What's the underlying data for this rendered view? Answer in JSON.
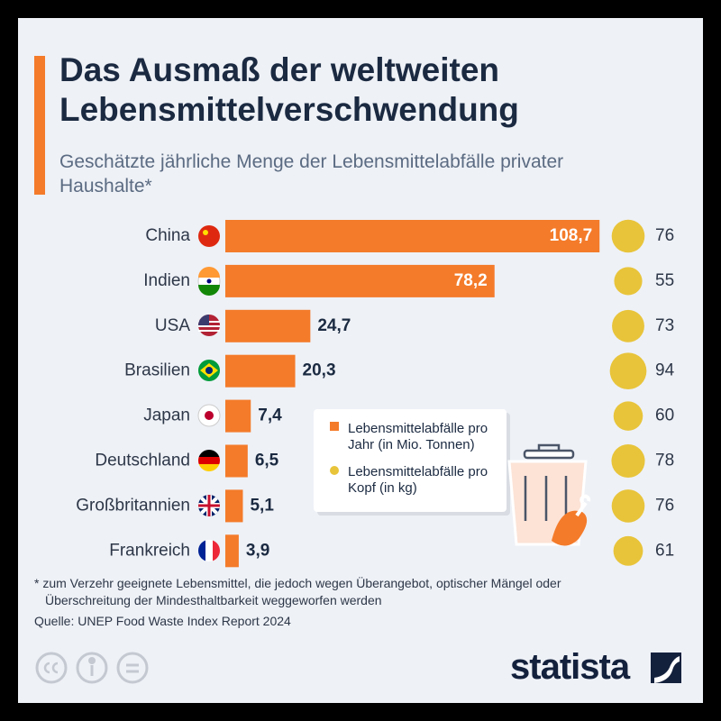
{
  "chart_data": {
    "type": "bar",
    "title": "Das Ausmaß der weltweiten Lebensmittelverschwendung",
    "subtitle": "Geschätzte jährliche Menge der Lebensmittelabfälle privater Haushalte*",
    "categories": [
      "China",
      "Indien",
      "USA",
      "Brasilien",
      "Japan",
      "Deutschland",
      "Großbritannien",
      "Frankreich"
    ],
    "series": [
      {
        "name": "Lebensmittelabfälle pro Jahr (in Mio. Tonnen)",
        "color": "#f47b2a",
        "values": [
          108.7,
          78.2,
          24.7,
          20.3,
          7.4,
          6.5,
          5.1,
          3.9
        ],
        "value_labels": [
          "108,7",
          "78,2",
          "24,7",
          "20,3",
          "7,4",
          "6,5",
          "5,1",
          "3,9"
        ]
      },
      {
        "name": "Lebensmittelabfälle pro Kopf (in kg)",
        "color": "#e8c43a",
        "values": [
          76,
          55,
          73,
          94,
          60,
          78,
          76,
          61
        ]
      }
    ],
    "footnote": "* zum Verzehr geeignete Lebensmittel, die jedoch wegen Überangebot, optischer Mängel oder Überschreitung der Mindesthaltbarkeit weggeworfen werden",
    "source": "Quelle: UNEP Food Waste Index Report 2024",
    "brand": "statista"
  }
}
